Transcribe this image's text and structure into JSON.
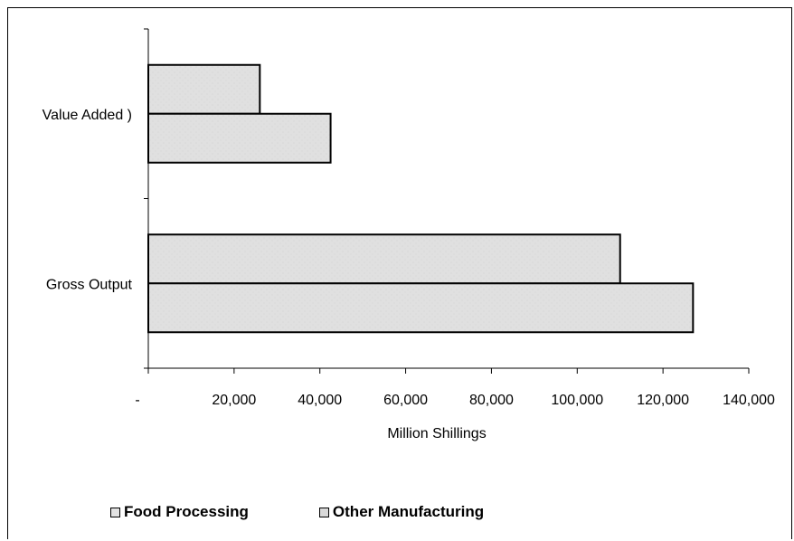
{
  "chart_data": {
    "type": "bar",
    "orientation": "horizontal",
    "categories": [
      "Value Added )",
      "Gross Output"
    ],
    "series": [
      {
        "name": "Food Processing",
        "values": [
          42500,
          127000
        ],
        "color": "#e2e2e2"
      },
      {
        "name": "Other Manufacturing",
        "values": [
          26000,
          110000
        ],
        "color": "#d9d9d9"
      }
    ],
    "xlabel": "Million Shillings",
    "xlim": [
      0,
      140000
    ],
    "xticks": [
      0,
      20000,
      40000,
      60000,
      80000,
      100000,
      120000,
      140000
    ],
    "xtick_labels": [
      "-",
      "20,000",
      "40,000",
      "60,000",
      "80,000",
      "100,000",
      "120,000",
      "140,000"
    ],
    "legend_position": "bottom",
    "grid": false
  }
}
